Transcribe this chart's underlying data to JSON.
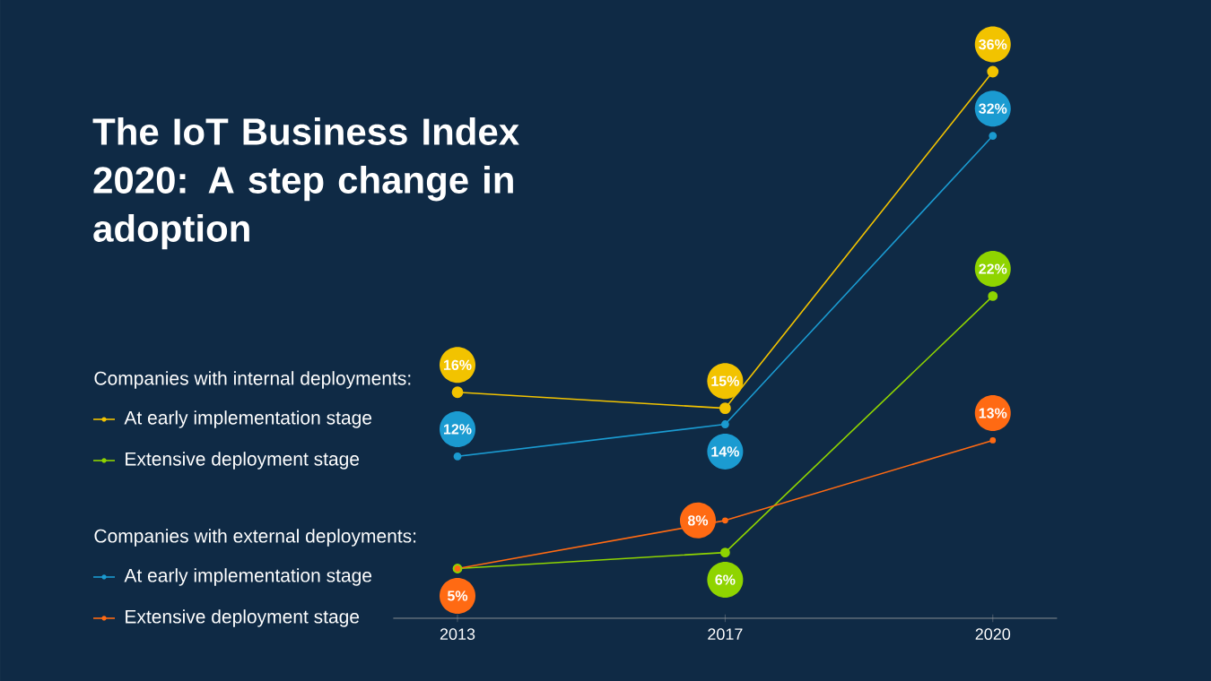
{
  "chart_data": {
    "type": "line",
    "title": "The IoT Business Index 2020: A step change in adoption",
    "categories": [
      "2013",
      "2017",
      "2020"
    ],
    "series": [
      {
        "name": "At early implementation stage",
        "color": "#f2c300",
        "values": [
          16,
          15,
          36
        ],
        "value_labels": [
          "16%",
          "15%",
          "36%"
        ]
      },
      {
        "name": "Extensive deployment stage",
        "color": "#8fd400",
        "values": [
          5,
          6,
          22
        ],
        "value_labels": [
          null,
          "6%",
          "22%"
        ]
      },
      {
        "name": "At early implementation stage",
        "color": "#1b9bd1",
        "values": [
          12,
          14,
          32
        ],
        "value_labels": [
          "12%",
          "14%",
          "32%"
        ]
      },
      {
        "name": "Extensive deployment stage",
        "color": "#ff6a13",
        "values": [
          5,
          8,
          13
        ],
        "value_labels": [
          "5%",
          "8%",
          "13%"
        ]
      }
    ],
    "annotations": [
      "Companies with internal deployments:",
      "Companies with external deployments:"
    ],
    "legend": "left",
    "marker": "circle",
    "line_style": "solid"
  }
}
